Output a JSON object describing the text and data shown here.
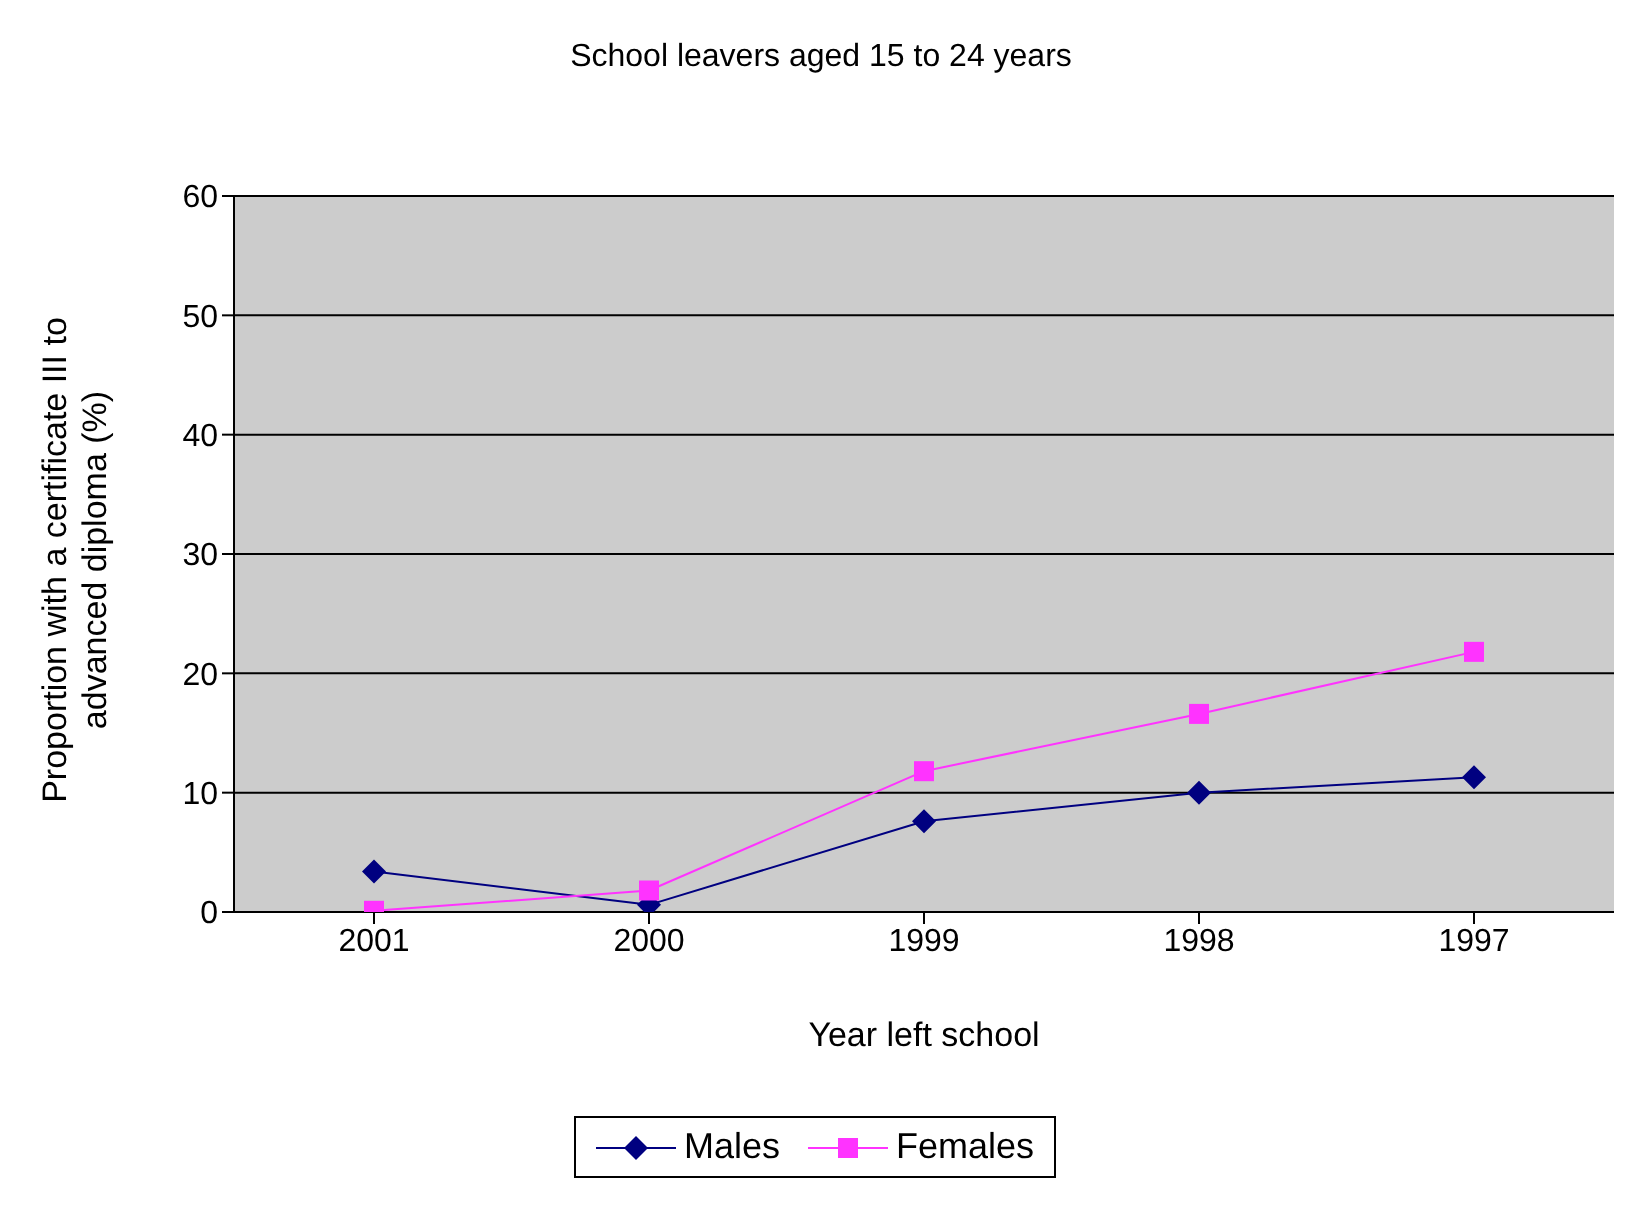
{
  "chart_data": {
    "type": "line",
    "title": "School leavers aged 15 to 24 years",
    "xlabel": "Year left school",
    "ylabel": "Proportion with a certificate III to advanced diploma (%)",
    "categories": [
      "2001",
      "2000",
      "1999",
      "1998",
      "1997"
    ],
    "series": [
      {
        "name": "Males",
        "color": "#000080",
        "marker": "diamond",
        "values": [
          3.4,
          0.6,
          7.6,
          10,
          11.3
        ]
      },
      {
        "name": "Females",
        "color": "#ff33ff",
        "marker": "square",
        "values": [
          0.1,
          1.8,
          11.8,
          16.6,
          21.8
        ]
      }
    ],
    "ylim": [
      0,
      60
    ],
    "yticks": [
      0,
      10,
      20,
      30,
      40,
      50,
      60
    ],
    "grid": "y",
    "legend": "bottom"
  }
}
